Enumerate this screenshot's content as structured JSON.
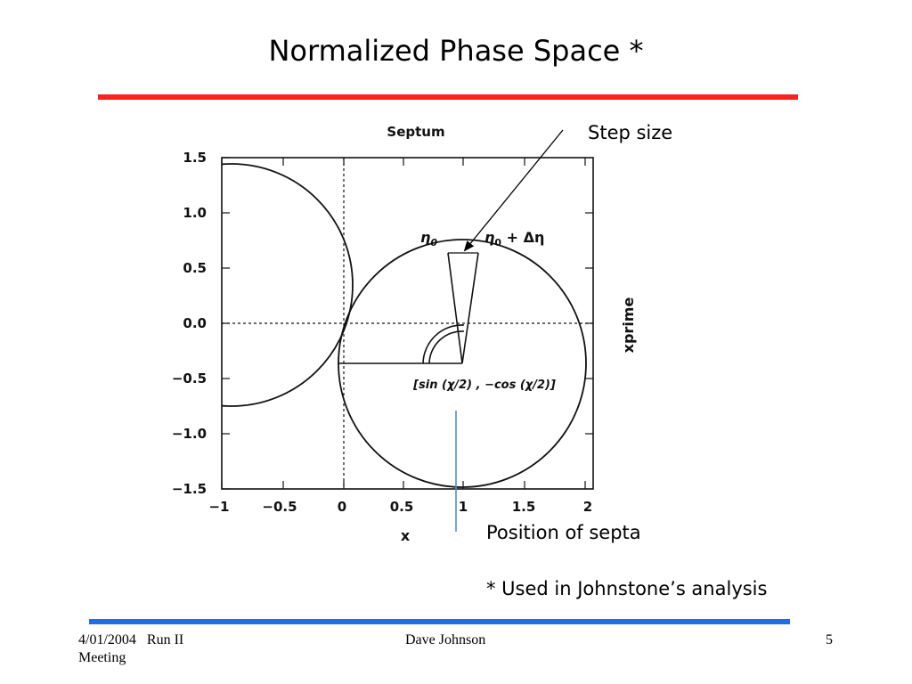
{
  "slide": {
    "title": "Normalized Phase Space *",
    "annotation_step": "Step size",
    "annotation_septa": "Position of septa",
    "footnote": "* Used in Johnstone’s  analysis",
    "footer_date_run": "4/01/2004   Run II",
    "footer_meeting": "Meeting",
    "footer_author": "Dave Johnson",
    "page_number": "5"
  },
  "colors": {
    "red_rule": "#ff2020",
    "blue_rule": "#1f6fe0",
    "septa_line": "#4a8fd4"
  },
  "figure": {
    "title": "Septum",
    "xlabel": "x",
    "ylabel": "xprime",
    "x_ticks": [
      "−1",
      "−0.5",
      "0",
      "0.5",
      "1",
      "1.5",
      "2"
    ],
    "y_ticks": [
      "1.5",
      "1.0",
      "0.5",
      "0.0",
      "−0.5",
      "−1.0",
      "−1.5"
    ],
    "eta0": "η",
    "eta0_sub": "0",
    "eta_delta_pre": "η",
    "eta_delta_sub": "0",
    "eta_delta_post": " + Δη",
    "center_label": "[sin (χ/2) , −cos (χ/2)]"
  }
}
